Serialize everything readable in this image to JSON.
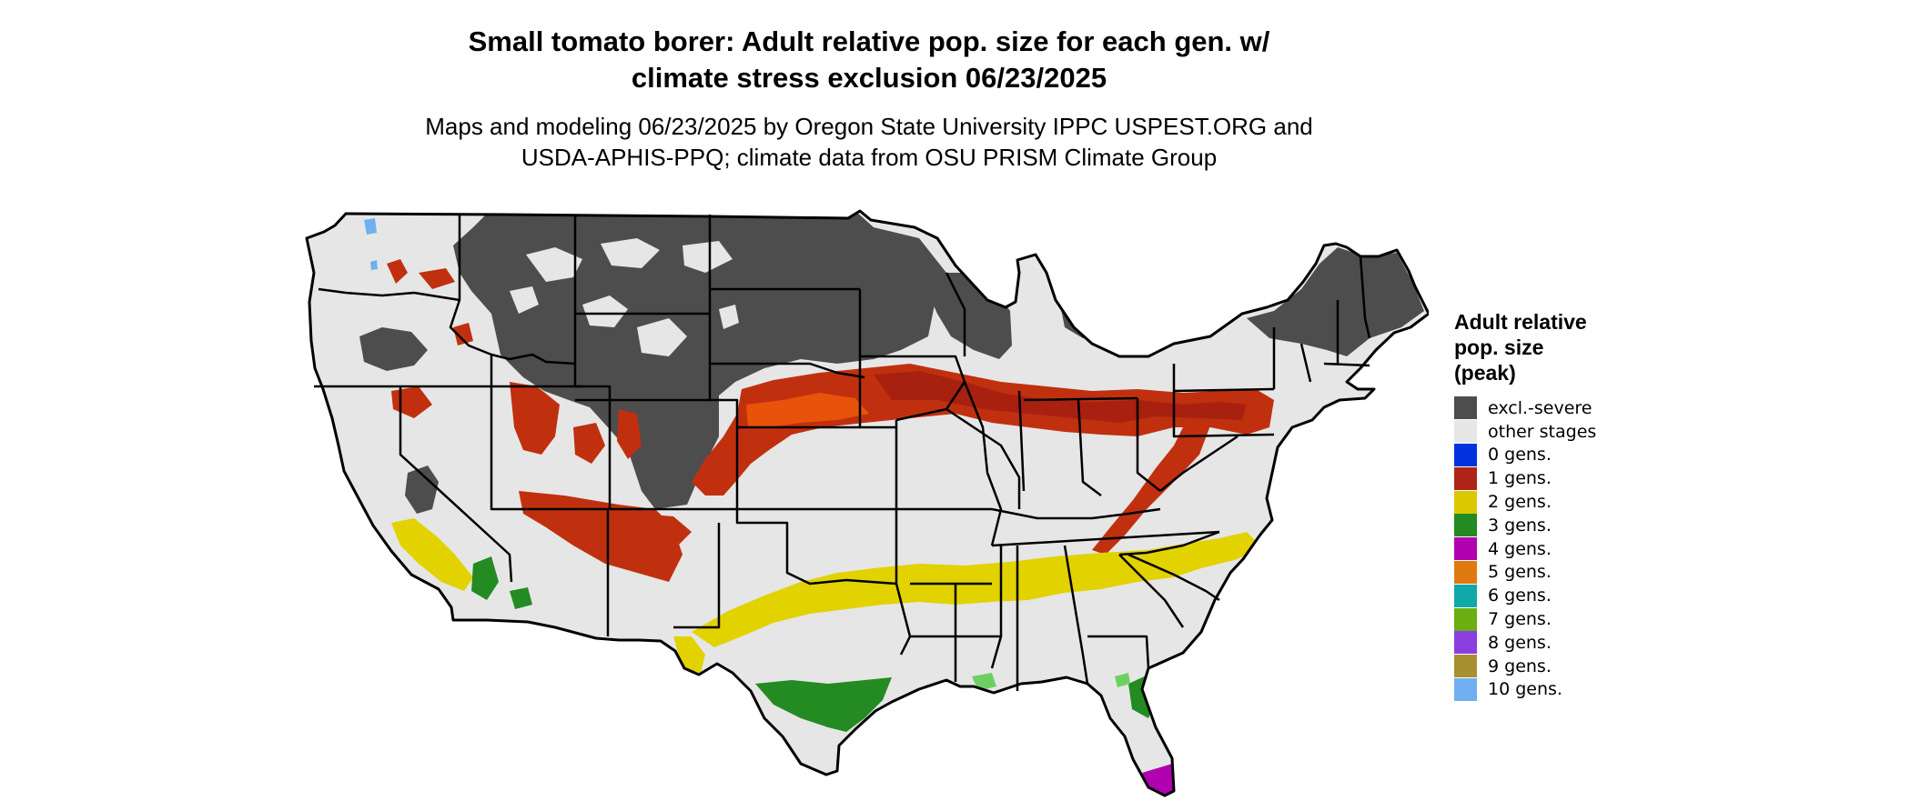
{
  "title": {
    "line1": "Small tomato borer: Adult relative pop. size for each gen. w/",
    "line2": "climate stress exclusion 06/23/2025"
  },
  "subtitle": {
    "line1": "Maps and modeling 06/23/2025 by Oregon State University IPPC USPEST.ORG and",
    "line2": "USDA-APHIS-PPQ; climate data from OSU PRISM Climate Group"
  },
  "legend": {
    "title_lines": [
      "Adult relative",
      "pop. size",
      "(peak)"
    ],
    "items": [
      {
        "label": "excl.-severe",
        "color": "#4d4d4d"
      },
      {
        "label": "other stages",
        "color": "#e6e6e6"
      },
      {
        "label": "0 gens.",
        "color": "#0033dd"
      },
      {
        "label": "1 gens.",
        "color": "#b02418"
      },
      {
        "label": "2 gens.",
        "color": "#dcc800"
      },
      {
        "label": "3 gens.",
        "color": "#238b22"
      },
      {
        "label": "4 gens.",
        "color": "#b000b0"
      },
      {
        "label": "5 gens.",
        "color": "#e07a10"
      },
      {
        "label": "6 gens.",
        "color": "#10a8a8"
      },
      {
        "label": "7 gens.",
        "color": "#6aae12"
      },
      {
        "label": "8 gens.",
        "color": "#8a3ee0"
      },
      {
        "label": "9 gens.",
        "color": "#a89030"
      },
      {
        "label": "10 gens.",
        "color": "#70b0f0"
      }
    ]
  },
  "map": {
    "region": "Contiguous United States",
    "colors": {
      "excluded": "#4d4d4d",
      "other": "#e6e6e6",
      "gen1": "#c0300f",
      "gen1_dark": "#a82010",
      "gen1_orange": "#e8520a",
      "gen2": "#e2d200",
      "gen3": "#238b22",
      "gen3_light": "#6cd060",
      "gen4": "#b000b0",
      "gen10": "#70b0f0",
      "border": "#000000"
    }
  }
}
